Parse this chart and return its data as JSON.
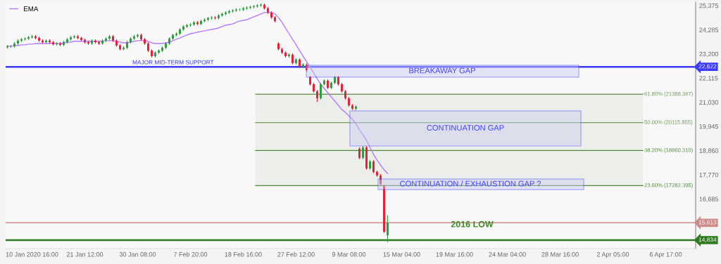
{
  "chart_data": {
    "type": "candlestick",
    "categories": [
      null,
      null,
      null,
      null,
      null,
      null,
      null,
      "10 Jan 2020 16:00",
      null,
      null,
      null,
      null,
      null,
      null,
      null,
      null,
      null,
      null,
      null,
      null,
      null,
      null,
      "21 Jan 12:00",
      null,
      null,
      null,
      null,
      null,
      null,
      null,
      null,
      null,
      null,
      null,
      null,
      null,
      null,
      "30 Jan 08:00",
      null,
      null,
      null,
      null,
      null,
      null,
      null,
      null,
      null,
      null,
      null,
      null,
      null,
      null,
      "7 Feb 20:00",
      null,
      null,
      null,
      null,
      null,
      null,
      null,
      null,
      null,
      null,
      null,
      null,
      null,
      null,
      "18 Feb 16:00",
      null,
      null,
      null,
      null,
      null,
      null,
      null,
      null,
      null,
      null,
      null,
      null,
      null,
      null,
      "27 Feb 12:00",
      null,
      null,
      null,
      null,
      null,
      null,
      null,
      null,
      null,
      null,
      null,
      null,
      null,
      null,
      "9 Mar 08:00",
      null,
      null,
      null,
      null,
      null,
      null,
      null,
      null,
      null,
      null,
      null,
      null,
      null,
      null,
      "15 Mar 04:00",
      null,
      null,
      null,
      null,
      null,
      null,
      null,
      null,
      null,
      null,
      null,
      null,
      null,
      null,
      "19 Mar 16:00",
      null,
      null,
      null,
      null,
      null,
      null,
      null,
      null,
      null,
      null,
      null,
      null,
      null,
      null,
      "24 Mar 04:00",
      null,
      null,
      null,
      null,
      null,
      null,
      null,
      null,
      null,
      null,
      null,
      null,
      null,
      null,
      "28 Mar 16:00",
      null,
      null,
      null,
      null,
      null,
      null,
      null,
      null,
      null,
      null,
      null,
      null,
      null,
      null,
      "2 Apr 05:00",
      null,
      null,
      null,
      null,
      null,
      null,
      null,
      null,
      null,
      null,
      null,
      null,
      null,
      null,
      "6 Apr 17:00",
      null,
      null,
      null,
      null,
      null,
      null,
      null,
      null
    ],
    "ohlc": [
      [
        23500,
        23600,
        23440,
        23540
      ],
      [
        23540,
        23600,
        23480,
        23540
      ],
      [
        23540,
        23730,
        23480,
        23670
      ],
      [
        23670,
        23860,
        23610,
        23800
      ],
      [
        23800,
        23920,
        23740,
        23860
      ],
      [
        23860,
        23950,
        23800,
        23890
      ],
      [
        23890,
        24010,
        23830,
        23950
      ],
      [
        23950,
        24050,
        23890,
        23990
      ],
      [
        23990,
        24050,
        23860,
        23920
      ],
      [
        23920,
        23980,
        23740,
        23800
      ],
      [
        23800,
        23860,
        23670,
        23730
      ],
      [
        23730,
        23860,
        23670,
        23800
      ],
      [
        23800,
        23860,
        23670,
        23730
      ],
      [
        23730,
        23790,
        23580,
        23640
      ],
      [
        23640,
        23730,
        23580,
        23670
      ],
      [
        23670,
        23730,
        23550,
        23610
      ],
      [
        23610,
        23790,
        23550,
        23730
      ],
      [
        23730,
        23920,
        23670,
        23860
      ],
      [
        23860,
        24010,
        23800,
        23950
      ],
      [
        23950,
        24050,
        23890,
        23990
      ],
      [
        23990,
        24050,
        23860,
        23920
      ],
      [
        23920,
        23980,
        23770,
        23830
      ],
      [
        23830,
        23890,
        23670,
        23730
      ],
      [
        23730,
        23790,
        23610,
        23670
      ],
      [
        23670,
        23860,
        23610,
        23800
      ],
      [
        23800,
        23860,
        23670,
        23730
      ],
      [
        23730,
        23790,
        23610,
        23670
      ],
      [
        23670,
        23860,
        23610,
        23800
      ],
      [
        23800,
        23950,
        23740,
        23890
      ],
      [
        23890,
        24050,
        23830,
        23990
      ],
      [
        23990,
        24050,
        23740,
        23800
      ],
      [
        23800,
        23860,
        23520,
        23580
      ],
      [
        23580,
        23640,
        23360,
        23420
      ],
      [
        23420,
        23540,
        23360,
        23480
      ],
      [
        23480,
        23790,
        23420,
        23730
      ],
      [
        23730,
        23950,
        23670,
        23890
      ],
      [
        23890,
        24050,
        23830,
        23990
      ],
      [
        23990,
        24110,
        23930,
        24050
      ],
      [
        24050,
        24110,
        23800,
        23860
      ],
      [
        23860,
        23920,
        23610,
        23670
      ],
      [
        23670,
        23730,
        23290,
        23350
      ],
      [
        23350,
        23410,
        23040,
        23100
      ],
      [
        23100,
        23320,
        23040,
        23260
      ],
      [
        23260,
        23410,
        23200,
        23350
      ],
      [
        23350,
        23540,
        23290,
        23480
      ],
      [
        23480,
        23730,
        23420,
        23670
      ],
      [
        23670,
        23950,
        23610,
        23890
      ],
      [
        23890,
        24110,
        23830,
        24050
      ],
      [
        24050,
        24170,
        23990,
        24110
      ],
      [
        24110,
        24360,
        24050,
        24300
      ],
      [
        24300,
        24490,
        24240,
        24430
      ],
      [
        24430,
        24550,
        24370,
        24490
      ],
      [
        24490,
        24580,
        24430,
        24520
      ],
      [
        24520,
        24680,
        24460,
        24620
      ],
      [
        24620,
        24680,
        24490,
        24550
      ],
      [
        24550,
        24740,
        24490,
        24680
      ],
      [
        24680,
        24800,
        24620,
        24740
      ],
      [
        24740,
        24870,
        24680,
        24810
      ],
      [
        24810,
        24900,
        24750,
        24840
      ],
      [
        24840,
        24900,
        24750,
        24810
      ],
      [
        24810,
        24990,
        24750,
        24930
      ],
      [
        24930,
        25060,
        24870,
        25000
      ],
      [
        25000,
        25120,
        24940,
        25060
      ],
      [
        25060,
        25180,
        25000,
        25120
      ],
      [
        25120,
        25210,
        25060,
        25150
      ],
      [
        25150,
        25250,
        25090,
        25190
      ],
      [
        25190,
        25250,
        25130,
        25190
      ],
      [
        25190,
        25310,
        25130,
        25250
      ],
      [
        25250,
        25340,
        25190,
        25280
      ],
      [
        25280,
        25370,
        25220,
        25310
      ],
      [
        25310,
        25400,
        25250,
        25340
      ],
      [
        25340,
        25440,
        25280,
        25380
      ],
      [
        25380,
        25470,
        25320,
        25410
      ],
      [
        25410,
        25470,
        25190,
        25250
      ],
      [
        25250,
        25310,
        25000,
        25060
      ],
      [
        25060,
        25120,
        24780,
        24840
      ],
      [
        24840,
        24900,
        24620,
        24680
      ],
      [
        23670,
        23730,
        23360,
        23420
      ],
      [
        23420,
        23480,
        23200,
        23260
      ],
      [
        23260,
        23320,
        23040,
        23100
      ],
      [
        23100,
        23230,
        23040,
        23170
      ],
      [
        23170,
        23230,
        22730,
        22790
      ],
      [
        22790,
        23010,
        22730,
        22950
      ],
      [
        22950,
        23010,
        22570,
        22630
      ],
      [
        22630,
        22780,
        22570,
        22720
      ],
      [
        22720,
        22780,
        22410,
        22470
      ],
      [
        22160,
        22220,
        21780,
        21840
      ],
      [
        21840,
        21900,
        21460,
        21520
      ],
      [
        21520,
        21580,
        21050,
        21210
      ],
      [
        21210,
        21900,
        21150,
        21840
      ],
      [
        21840,
        22060,
        21780,
        22000
      ],
      [
        22000,
        22060,
        21620,
        21680
      ],
      [
        21680,
        21960,
        21620,
        21900
      ],
      [
        21900,
        22220,
        21840,
        22160
      ],
      [
        22160,
        22220,
        21780,
        21840
      ],
      [
        21840,
        21900,
        21460,
        21520
      ],
      [
        21520,
        21580,
        21150,
        21210
      ],
      [
        21210,
        21270,
        20830,
        20890
      ],
      [
        20890,
        20950,
        20680,
        20740
      ],
      [
        20740,
        20890,
        20680,
        20830
      ],
      [
        18940,
        19000,
        18470,
        18530
      ],
      [
        18530,
        19060,
        18470,
        19000
      ],
      [
        19000,
        19060,
        18000,
        18060
      ],
      [
        18060,
        18430,
        18000,
        18370
      ],
      [
        18370,
        18430,
        17840,
        17900
      ],
      [
        17900,
        17960,
        17680,
        17740
      ],
      [
        17740,
        17800,
        17300,
        17360
      ],
      [
        17260,
        17320,
        15150,
        15210
      ],
      [
        15050,
        15950,
        14740,
        15613
      ],
      null,
      null,
      null,
      null,
      null,
      null,
      null,
      null,
      null,
      null,
      null,
      null,
      null,
      null,
      null,
      null,
      null,
      null,
      null,
      null,
      null,
      null,
      null,
      null,
      null,
      null,
      null,
      null,
      null,
      null,
      null,
      null,
      null,
      null,
      null,
      null,
      null,
      null,
      null,
      null,
      null,
      null,
      null,
      null,
      null,
      null,
      null,
      null,
      null,
      null,
      null,
      null,
      null,
      null,
      null,
      null,
      null,
      null,
      null,
      null,
      null,
      null,
      null,
      null,
      null,
      null,
      null,
      null,
      null,
      null,
      null,
      null,
      null,
      null,
      null,
      null,
      null,
      null,
      null,
      null,
      null,
      null,
      null,
      null,
      null,
      null,
      null
    ],
    "series": [
      {
        "name": "EMA",
        "type": "line",
        "color": "#b57bff",
        "values": [
          23540,
          23540,
          23580,
          23580,
          23610,
          23610,
          23640,
          23640,
          23670,
          23670,
          23670,
          23670,
          23670,
          23670,
          23670,
          23670,
          23700,
          23730,
          23730,
          23770,
          23770,
          23770,
          23770,
          23770,
          23770,
          23770,
          23770,
          23770,
          23800,
          23800,
          23800,
          23770,
          23730,
          23700,
          23700,
          23730,
          23770,
          23800,
          23800,
          23800,
          23770,
          23700,
          23670,
          23670,
          23670,
          23700,
          23730,
          23800,
          23860,
          23920,
          23990,
          24050,
          24110,
          24140,
          24180,
          24210,
          24240,
          24270,
          24300,
          24330,
          24370,
          24430,
          24490,
          24520,
          24550,
          24620,
          24680,
          24710,
          24740,
          24810,
          24870,
          24930,
          25000,
          25060,
          25060,
          25060,
          25000,
          24840,
          24620,
          24370,
          24110,
          23860,
          23610,
          23350,
          23100,
          22850,
          22600,
          22350,
          22090,
          21840,
          21650,
          21460,
          21270,
          21080,
          20890,
          20700,
          20580,
          20420,
          20260,
          20070,
          19790,
          19570,
          19320,
          19000,
          18690,
          18430,
          18210,
          17990,
          17830,
          null,
          null,
          null,
          null,
          null,
          null,
          null,
          null,
          null,
          null,
          null,
          null,
          null,
          null,
          null,
          null,
          null,
          null,
          null,
          null,
          null,
          null,
          null,
          null,
          null,
          null,
          null,
          null,
          null,
          null,
          null,
          null,
          null,
          null,
          null,
          null,
          null,
          null,
          null,
          null,
          null,
          null,
          null,
          null,
          null,
          null,
          null,
          null,
          null,
          null,
          null,
          null,
          null,
          null,
          null,
          null,
          null,
          null,
          null,
          null,
          null,
          null,
          null,
          null,
          null,
          null,
          null,
          null,
          null,
          null,
          null,
          null,
          null,
          null,
          null,
          null,
          null,
          null,
          null,
          null,
          null,
          null,
          null,
          null,
          null,
          null,
          null
        ]
      }
    ],
    "ylim": [
      14455,
      25530
    ],
    "yticks": [
      {
        "value": 25375,
        "label": "25,375"
      },
      {
        "value": 24285,
        "label": "24,285"
      },
      {
        "value": 23200,
        "label": "23,200"
      },
      {
        "value": 22115,
        "label": "22,115"
      },
      {
        "value": 21030,
        "label": "21,030"
      },
      {
        "value": 19945,
        "label": "19,945"
      },
      {
        "value": 18860,
        "label": "18,860"
      },
      {
        "value": 17770,
        "label": "17,770"
      },
      {
        "value": 16685,
        "label": "16,685"
      }
    ],
    "ref_lines": [
      {
        "axis": "y",
        "value": 22622,
        "label": "22,622",
        "color": "#3b3bff"
      },
      {
        "axis": "y",
        "value": 21388.367,
        "label": "61.80% (21388.367)",
        "color": "#6f9a5a"
      },
      {
        "axis": "y",
        "value": 20115.855,
        "label": "50.00% (20115.855)",
        "color": "#6f9a5a"
      },
      {
        "axis": "y",
        "value": 18860.31,
        "label": "38.20% (18860.310)",
        "color": "#4f8a3a"
      },
      {
        "axis": "y",
        "value": 17282.395,
        "label": "23.60% (17282.395)",
        "color": "#4f8a3a"
      },
      {
        "axis": "y",
        "value": 15613,
        "label": "15,613",
        "color": "#d08a8a"
      },
      {
        "axis": "y",
        "value": 14834,
        "label": "14,834",
        "color": "#2f7a20"
      }
    ],
    "bands": [
      {
        "axis": "y",
        "from": 17282.395,
        "to": 21388.367,
        "color": "#eceee9"
      }
    ],
    "annotations": [
      {
        "text": "MAJOR MID-TERM SUPPORT",
        "y": 22622
      },
      "BREAKAWAY GAP",
      "CONTINUATION GAP",
      "CONTINUATION / EXHAUSTION GAP ?",
      {
        "text": "2016 LOW",
        "y": 14834
      }
    ],
    "legend": "top left",
    "grid": false
  }
}
